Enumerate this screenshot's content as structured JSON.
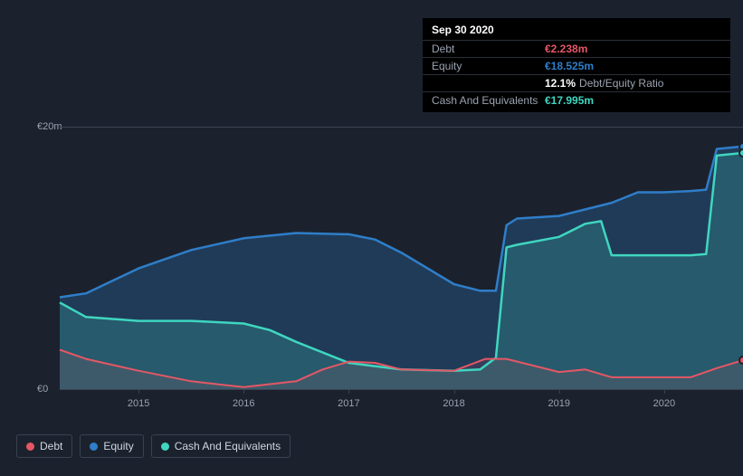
{
  "chart": {
    "type": "area",
    "background_color": "#1b222d",
    "grid_color": "#3a4250",
    "label_color": "#9aa3b0",
    "label_fontsize": 11,
    "currency_prefix": "€",
    "y": {
      "min": 0,
      "max": 20,
      "ticks": [
        {
          "value": 0,
          "label": "€0"
        },
        {
          "value": 20,
          "label": "€20m"
        }
      ]
    },
    "x": {
      "min": 2014.25,
      "max": 2020.75,
      "ticks": [
        {
          "value": 2015,
          "label": "2015"
        },
        {
          "value": 2016,
          "label": "2016"
        },
        {
          "value": 2017,
          "label": "2017"
        },
        {
          "value": 2018,
          "label": "2018"
        },
        {
          "value": 2019,
          "label": "2019"
        },
        {
          "value": 2020,
          "label": "2020"
        }
      ]
    },
    "series": {
      "equity": {
        "name": "Equity",
        "stroke": "#2f7ec9",
        "fill": "#2f7ec9",
        "fill_opacity": 0.28,
        "line_width": 2.5,
        "data": [
          [
            2014.25,
            7.0
          ],
          [
            2014.5,
            7.3
          ],
          [
            2015.0,
            9.2
          ],
          [
            2015.5,
            10.6
          ],
          [
            2016.0,
            11.5
          ],
          [
            2016.5,
            11.9
          ],
          [
            2017.0,
            11.8
          ],
          [
            2017.25,
            11.4
          ],
          [
            2017.5,
            10.4
          ],
          [
            2018.0,
            8.0
          ],
          [
            2018.25,
            7.5
          ],
          [
            2018.4,
            7.5
          ],
          [
            2018.5,
            12.5
          ],
          [
            2018.6,
            13.0
          ],
          [
            2019.0,
            13.2
          ],
          [
            2019.5,
            14.2
          ],
          [
            2019.75,
            15.0
          ],
          [
            2020.0,
            15.0
          ],
          [
            2020.25,
            15.1
          ],
          [
            2020.4,
            15.2
          ],
          [
            2020.5,
            18.3
          ],
          [
            2020.75,
            18.5
          ]
        ]
      },
      "cash": {
        "name": "Cash And Equivalents",
        "stroke": "#3fd6c0",
        "fill": "#3fd6c0",
        "fill_opacity": 0.2,
        "line_width": 2.5,
        "data": [
          [
            2014.25,
            6.6
          ],
          [
            2014.5,
            5.5
          ],
          [
            2015.0,
            5.2
          ],
          [
            2015.5,
            5.2
          ],
          [
            2016.0,
            5.0
          ],
          [
            2016.25,
            4.5
          ],
          [
            2016.5,
            3.6
          ],
          [
            2017.0,
            2.0
          ],
          [
            2017.5,
            1.5
          ],
          [
            2018.0,
            1.4
          ],
          [
            2018.25,
            1.5
          ],
          [
            2018.4,
            2.4
          ],
          [
            2018.5,
            10.8
          ],
          [
            2018.6,
            11.0
          ],
          [
            2019.0,
            11.6
          ],
          [
            2019.25,
            12.6
          ],
          [
            2019.4,
            12.8
          ],
          [
            2019.5,
            10.2
          ],
          [
            2020.0,
            10.2
          ],
          [
            2020.25,
            10.2
          ],
          [
            2020.4,
            10.3
          ],
          [
            2020.5,
            17.8
          ],
          [
            2020.75,
            18.0
          ]
        ]
      },
      "debt": {
        "name": "Debt",
        "stroke": "#e55765",
        "fill": "#e55765",
        "fill_opacity": 0.12,
        "line_width": 2,
        "data": [
          [
            2014.25,
            3.0
          ],
          [
            2014.5,
            2.3
          ],
          [
            2015.0,
            1.4
          ],
          [
            2015.5,
            0.6
          ],
          [
            2016.0,
            0.15
          ],
          [
            2016.5,
            0.6
          ],
          [
            2016.75,
            1.5
          ],
          [
            2017.0,
            2.1
          ],
          [
            2017.25,
            2.0
          ],
          [
            2017.5,
            1.5
          ],
          [
            2018.0,
            1.4
          ],
          [
            2018.3,
            2.3
          ],
          [
            2018.5,
            2.3
          ],
          [
            2019.0,
            1.3
          ],
          [
            2019.25,
            1.5
          ],
          [
            2019.5,
            0.9
          ],
          [
            2020.0,
            0.9
          ],
          [
            2020.25,
            0.9
          ],
          [
            2020.5,
            1.6
          ],
          [
            2020.75,
            2.2
          ]
        ]
      }
    },
    "end_markers": {
      "equity": {
        "x": 2020.75,
        "y": 18.5,
        "color": "#2f7ec9"
      },
      "cash": {
        "x": 2020.75,
        "y": 18.0,
        "color": "#3fd6c0"
      },
      "debt": {
        "x": 2020.75,
        "y": 2.2,
        "color": "#e55765"
      }
    }
  },
  "tooltip": {
    "date": "Sep 30 2020",
    "rows": [
      {
        "k": "Debt",
        "v": "€2.238m",
        "color": "#e55765"
      },
      {
        "k": "Equity",
        "v": "€18.525m",
        "color": "#2f7ec9"
      },
      {
        "k": "",
        "v": "12.1%",
        "suffix": "Debt/Equity Ratio",
        "color": "#ffffff"
      },
      {
        "k": "Cash And Equivalents",
        "v": "€17.995m",
        "color": "#3fd6c0"
      }
    ]
  },
  "legend": [
    {
      "key": "debt",
      "label": "Debt",
      "color": "#e55765"
    },
    {
      "key": "equity",
      "label": "Equity",
      "color": "#2f7ec9"
    },
    {
      "key": "cash",
      "label": "Cash And Equivalents",
      "color": "#3fd6c0"
    }
  ]
}
